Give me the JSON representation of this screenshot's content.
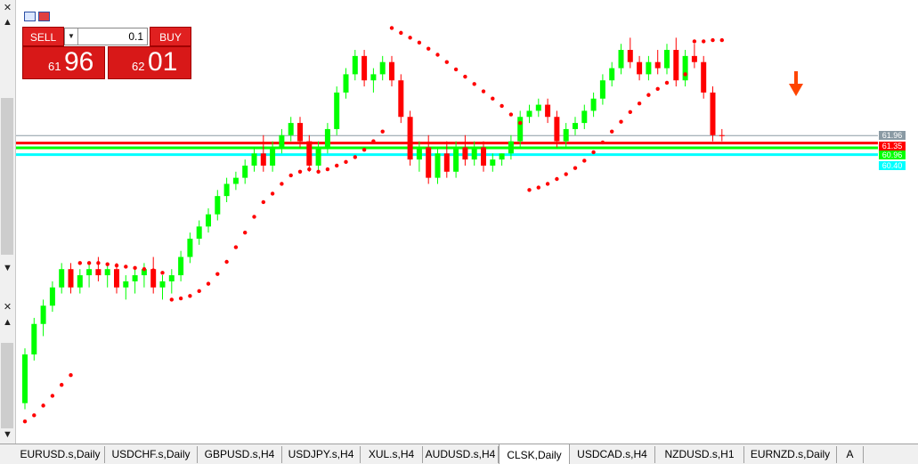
{
  "symbol": "CLSK,Daily",
  "trade_panel": {
    "sell_label": "SELL",
    "buy_label": "BUY",
    "lot_value": "0.1",
    "sell_price_small": "61",
    "sell_price_big": "96",
    "buy_price_small": "62",
    "buy_price_big": "01"
  },
  "price_labels": {
    "current": "61.96",
    "red_line": "61.35",
    "green_line": "60.96",
    "cyan_line": "60.40"
  },
  "colors": {
    "bull": "#00ff00",
    "bear": "#ff0000",
    "sar": "#ff0000",
    "red_line": "#ff0000",
    "green_line": "#00ff00",
    "cyan_line": "#00ffff",
    "trade_panel": "#d81818",
    "signal_arrow": "#ff4500"
  },
  "signal_icon": "down-arrow-icon",
  "tabs": [
    {
      "label": "EURUSD.s,Daily",
      "active": false
    },
    {
      "label": "USDCHF.s,Daily",
      "active": false
    },
    {
      "label": "GBPUSD.s,H4",
      "active": false
    },
    {
      "label": "USDJPY.s,H4",
      "active": false
    },
    {
      "label": "XUL.s,H4",
      "active": false
    },
    {
      "label": "AUDUSD.s,H4",
      "active": false
    },
    {
      "label": "CLSK,Daily",
      "active": true
    },
    {
      "label": "USDCAD.s,H4",
      "active": false
    },
    {
      "label": "NZDUSD.s,H1",
      "active": false
    },
    {
      "label": "EURNZD.s,Daily",
      "active": false
    },
    {
      "label": "A",
      "active": false
    }
  ],
  "chart_data": {
    "type": "candlestick",
    "indicator": "Parabolic SAR",
    "candles": [
      [
        40.0,
        44.5,
        39.5,
        44.0
      ],
      [
        44.0,
        47.0,
        43.5,
        46.5
      ],
      [
        46.5,
        48.5,
        45.5,
        48.0
      ],
      [
        48.0,
        50.0,
        47.5,
        49.5
      ],
      [
        49.5,
        51.5,
        49.0,
        51.0
      ],
      [
        51.0,
        51.5,
        49.0,
        49.5
      ],
      [
        49.5,
        51.0,
        49.0,
        50.5
      ],
      [
        50.5,
        51.5,
        49.5,
        51.0
      ],
      [
        51.0,
        52.0,
        50.0,
        50.5
      ],
      [
        50.5,
        51.5,
        49.5,
        51.0
      ],
      [
        51.0,
        51.5,
        49.0,
        49.5
      ],
      [
        49.5,
        50.5,
        48.5,
        50.0
      ],
      [
        50.0,
        51.0,
        49.0,
        50.5
      ],
      [
        50.5,
        51.5,
        49.5,
        51.0
      ],
      [
        51.0,
        52.0,
        49.0,
        49.5
      ],
      [
        49.5,
        50.5,
        48.5,
        50.0
      ],
      [
        50.0,
        51.0,
        49.0,
        50.5
      ],
      [
        50.5,
        52.5,
        50.0,
        52.0
      ],
      [
        52.0,
        54.0,
        51.5,
        53.5
      ],
      [
        53.5,
        55.0,
        53.0,
        54.5
      ],
      [
        54.5,
        56.0,
        54.0,
        55.5
      ],
      [
        55.5,
        57.5,
        55.0,
        57.0
      ],
      [
        57.0,
        58.5,
        56.5,
        58.0
      ],
      [
        58.0,
        59.0,
        57.5,
        58.5
      ],
      [
        58.5,
        60.0,
        58.0,
        59.5
      ],
      [
        59.5,
        61.0,
        59.0,
        60.5
      ],
      [
        60.5,
        62.0,
        59.0,
        59.5
      ],
      [
        59.5,
        61.5,
        59.0,
        61.0
      ],
      [
        61.0,
        62.5,
        60.5,
        62.0
      ],
      [
        62.0,
        63.5,
        61.5,
        63.0
      ],
      [
        63.0,
        63.5,
        61.0,
        61.5
      ],
      [
        61.5,
        62.0,
        59.0,
        59.5
      ],
      [
        59.5,
        61.5,
        59.0,
        61.0
      ],
      [
        61.0,
        63.0,
        60.5,
        62.5
      ],
      [
        62.5,
        66.0,
        62.0,
        65.5
      ],
      [
        65.5,
        67.5,
        65.0,
        67.0
      ],
      [
        67.0,
        69.0,
        66.5,
        68.5
      ],
      [
        68.5,
        69.0,
        66.0,
        66.5
      ],
      [
        66.5,
        67.5,
        65.5,
        67.0
      ],
      [
        67.0,
        68.5,
        66.5,
        68.0
      ],
      [
        68.0,
        68.5,
        66.0,
        66.5
      ],
      [
        66.5,
        67.0,
        63.0,
        63.5
      ],
      [
        63.5,
        64.0,
        59.5,
        60.0
      ],
      [
        60.0,
        61.5,
        59.0,
        61.0
      ],
      [
        61.0,
        62.0,
        58.0,
        58.5
      ],
      [
        58.5,
        61.0,
        58.0,
        60.5
      ],
      [
        60.5,
        61.5,
        58.5,
        59.0
      ],
      [
        59.0,
        61.5,
        58.5,
        61.0
      ],
      [
        61.0,
        62.0,
        59.5,
        60.0
      ],
      [
        60.0,
        61.5,
        59.5,
        61.0
      ],
      [
        61.0,
        61.5,
        59.0,
        59.5
      ],
      [
        59.5,
        60.5,
        59.0,
        60.0
      ],
      [
        60.0,
        60.5,
        59.5,
        60.5
      ],
      [
        60.5,
        62.0,
        60.0,
        61.5
      ],
      [
        61.5,
        64.0,
        61.0,
        63.5
      ],
      [
        63.5,
        64.5,
        63.0,
        64.0
      ],
      [
        64.0,
        65.0,
        63.5,
        64.5
      ],
      [
        64.5,
        65.0,
        63.0,
        63.5
      ],
      [
        63.5,
        64.0,
        61.0,
        61.5
      ],
      [
        61.5,
        63.0,
        61.0,
        62.5
      ],
      [
        62.5,
        63.5,
        62.0,
        63.0
      ],
      [
        63.0,
        64.5,
        62.5,
        64.0
      ],
      [
        64.0,
        65.5,
        63.5,
        65.0
      ],
      [
        65.0,
        67.0,
        64.5,
        66.5
      ],
      [
        66.5,
        68.0,
        66.0,
        67.5
      ],
      [
        67.5,
        69.5,
        67.0,
        69.0
      ],
      [
        69.0,
        70.0,
        67.5,
        68.0
      ],
      [
        68.0,
        68.5,
        66.5,
        67.0
      ],
      [
        67.0,
        68.5,
        66.5,
        68.0
      ],
      [
        68.0,
        69.0,
        67.0,
        67.5
      ],
      [
        67.5,
        69.5,
        67.0,
        69.0
      ],
      [
        69.0,
        70.0,
        66.0,
        66.5
      ],
      [
        66.5,
        69.0,
        66.0,
        68.5
      ],
      [
        68.5,
        69.5,
        67.5,
        68.0
      ],
      [
        68.0,
        68.5,
        65.0,
        65.5
      ],
      [
        65.5,
        66.0,
        61.5,
        62.0
      ],
      [
        62.0,
        62.5,
        61.5,
        61.96
      ]
    ],
    "sar": [
      38.5,
      39.0,
      39.8,
      40.6,
      41.5,
      42.3,
      51.5,
      51.5,
      51.5,
      51.4,
      51.3,
      51.2,
      51.1,
      51.0,
      50.9,
      50.7,
      48.5,
      48.6,
      48.8,
      49.2,
      49.8,
      50.6,
      51.6,
      52.8,
      54.0,
      55.3,
      56.5,
      57.2,
      58.0,
      58.7,
      59.0,
      59.2,
      59.0,
      59.2,
      59.5,
      59.8,
      60.2,
      60.8,
      61.5,
      62.3,
      70.8,
      70.4,
      70.0,
      69.6,
      69.1,
      68.6,
      68.0,
      67.4,
      66.8,
      66.2,
      65.6,
      65.0,
      64.4,
      63.7,
      63.0,
      57.5,
      57.7,
      58.0,
      58.4,
      58.8,
      59.3,
      59.9,
      60.6,
      61.4,
      62.3,
      63.1,
      63.9,
      64.6,
      65.3,
      65.8,
      66.3,
      66.7,
      67.0,
      69.7,
      69.7,
      69.8,
      69.8
    ],
    "horizontal_lines": [
      {
        "price": 61.35,
        "color": "#ff0000"
      },
      {
        "price": 60.96,
        "color": "#00ff00"
      },
      {
        "price": 60.4,
        "color": "#00ffff"
      },
      {
        "price": 61.96,
        "color": "#8a9aa4"
      }
    ],
    "ylim": [
      38,
      72
    ],
    "grid": false
  }
}
